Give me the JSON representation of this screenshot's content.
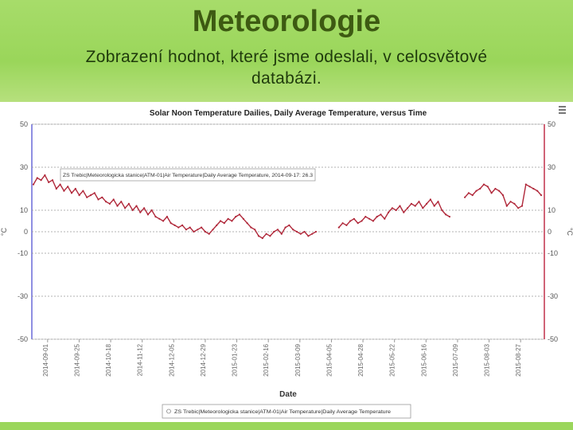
{
  "slide": {
    "title": "Meteorologie",
    "subtitle_line1": "Zobrazení hodnot, které jsme odeslali, v celosvětové",
    "subtitle_line2": "databázi."
  },
  "menu_icon": "hamburger-menu-icon",
  "colors": {
    "header_green": "#9ad65a",
    "title_green": "#3d5a12",
    "series_red": "#b0283a",
    "left_axis_blue": "#6a6ad8",
    "right_axis_red": "#c0304a"
  },
  "chart_data": {
    "type": "line",
    "title": "Solar Noon Temperature Dailies, Daily Average Temperature, versus Time",
    "xlabel": "Date",
    "ylabel": "°C",
    "ylabel_right": "°C",
    "ylim": [
      -50,
      50
    ],
    "y_ticks": [
      50,
      30,
      10,
      0,
      -10,
      -30,
      -50
    ],
    "x_ticks": [
      "2014-09-01",
      "2014-09-25",
      "2014-10-18",
      "2014-11-12",
      "2014-12-05",
      "2014-12-29",
      "2015-01-23",
      "2015-02-16",
      "2015-03-09",
      "2015-04-05",
      "2015-04-28",
      "2015-05-22",
      "2015-06-16",
      "2015-07-09",
      "2015-08-03",
      "2015-08-27"
    ],
    "grid": true,
    "tooltip": "ZS Trebic|Meteorologicka stanice|ATM-01|Air Temperature|Daily Average Temperature, 2014-09-17: 26.3",
    "legend": "ZS Trebic|Meteorologicka stanice|ATM-01|Air Temperature|Daily Average Temperature",
    "legend_position": "bottom",
    "series": [
      {
        "values": [
          22,
          25,
          24,
          26.3,
          23,
          24,
          20,
          22,
          19,
          21,
          18,
          20,
          17,
          19,
          16,
          17,
          18,
          15,
          16,
          14,
          13,
          15,
          12,
          14,
          11,
          13,
          10,
          12,
          9,
          11,
          8,
          10,
          7,
          6,
          5,
          7,
          4,
          3,
          2,
          3,
          1,
          2,
          0,
          1,
          2,
          0,
          -1,
          1,
          3,
          5,
          4,
          6,
          5,
          7,
          8,
          6,
          4,
          2,
          1,
          -2,
          -3,
          -1,
          -2,
          0,
          1,
          -1,
          2,
          3,
          1,
          0,
          -1,
          0,
          -2,
          -1,
          0,
          null,
          null,
          null,
          null,
          null,
          2,
          4,
          3,
          5,
          6,
          4,
          5,
          7,
          6,
          5,
          7,
          8,
          6,
          9,
          11,
          10,
          12,
          9,
          11,
          13,
          12,
          14,
          11,
          13,
          15,
          12,
          14,
          10,
          8,
          7,
          null,
          null,
          null,
          16,
          18,
          17,
          19,
          20,
          22,
          21,
          18,
          20,
          19,
          17,
          12,
          14,
          13,
          11,
          12,
          22,
          21,
          20,
          19,
          17
        ]
      }
    ]
  }
}
